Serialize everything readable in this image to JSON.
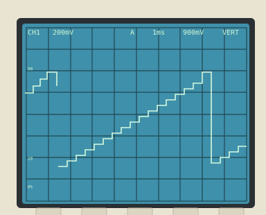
{
  "status_bar": {
    "channel": "CH1",
    "volts_per_div": "200mV",
    "trigger_source": "A",
    "time_per_div": "1ms",
    "trigger_level": "900mV",
    "mode": "VERT"
  },
  "graticule_labels": [
    "90",
    "10",
    "0%"
  ]
}
